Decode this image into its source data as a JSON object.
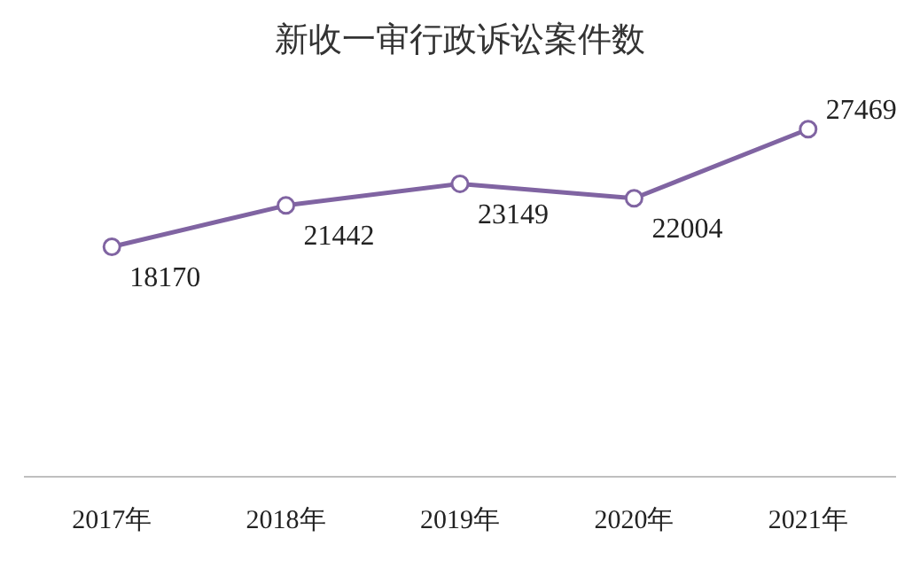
{
  "chart_data": {
    "type": "line",
    "title": "新收一审行政诉讼案件数",
    "categories": [
      "2017年",
      "2018年",
      "2019年",
      "2020年",
      "2021年"
    ],
    "series": [
      {
        "color": "#8064a2",
        "values": [
          18170,
          21442,
          23149,
          22004,
          27469
        ]
      }
    ],
    "tick_labels": "x",
    "data_labels": true,
    "grid": false,
    "legend": false,
    "marker": "circle"
  }
}
